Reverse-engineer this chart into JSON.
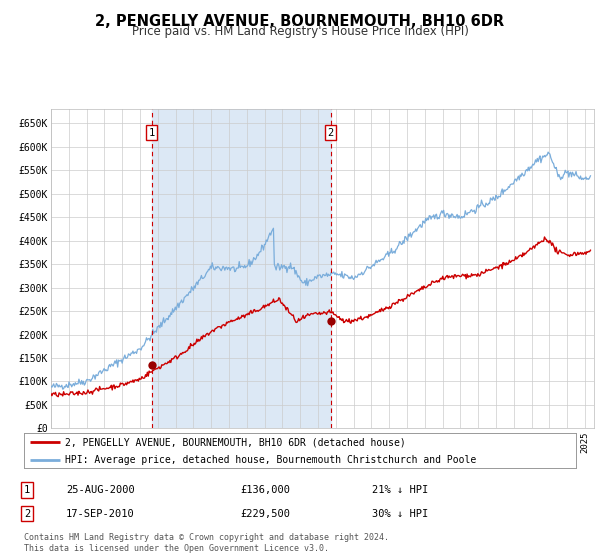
{
  "title": "2, PENGELLY AVENUE, BOURNEMOUTH, BH10 6DR",
  "subtitle": "Price paid vs. HM Land Registry's House Price Index (HPI)",
  "title_fontsize": 10.5,
  "subtitle_fontsize": 8.5,
  "bg_color": "#ffffff",
  "plot_bg_color": "#ffffff",
  "grid_color": "#cccccc",
  "red_line_color": "#cc0000",
  "blue_line_color": "#7aaddb",
  "shade_color": "#dce8f5",
  "marker_color": "#990000",
  "dashed_line_color": "#cc0000",
  "sale1_year": 2000.65,
  "sale1_price": 136000,
  "sale1_label": "1",
  "sale2_year": 2010.71,
  "sale2_price": 229500,
  "sale2_label": "2",
  "xmin": 1995,
  "xmax": 2025.5,
  "ymin": 0,
  "ymax": 680000,
  "yticks": [
    0,
    50000,
    100000,
    150000,
    200000,
    250000,
    300000,
    350000,
    400000,
    450000,
    500000,
    550000,
    600000,
    650000
  ],
  "ytick_labels": [
    "£0",
    "£50K",
    "£100K",
    "£150K",
    "£200K",
    "£250K",
    "£300K",
    "£350K",
    "£400K",
    "£450K",
    "£500K",
    "£550K",
    "£600K",
    "£650K"
  ],
  "legend_red": "2, PENGELLY AVENUE, BOURNEMOUTH, BH10 6DR (detached house)",
  "legend_blue": "HPI: Average price, detached house, Bournemouth Christchurch and Poole",
  "table_row1_num": "1",
  "table_row1_date": "25-AUG-2000",
  "table_row1_price": "£136,000",
  "table_row1_hpi": "21% ↓ HPI",
  "table_row2_num": "2",
  "table_row2_date": "17-SEP-2010",
  "table_row2_price": "£229,500",
  "table_row2_hpi": "30% ↓ HPI",
  "footer": "Contains HM Land Registry data © Crown copyright and database right 2024.\nThis data is licensed under the Open Government Licence v3.0."
}
